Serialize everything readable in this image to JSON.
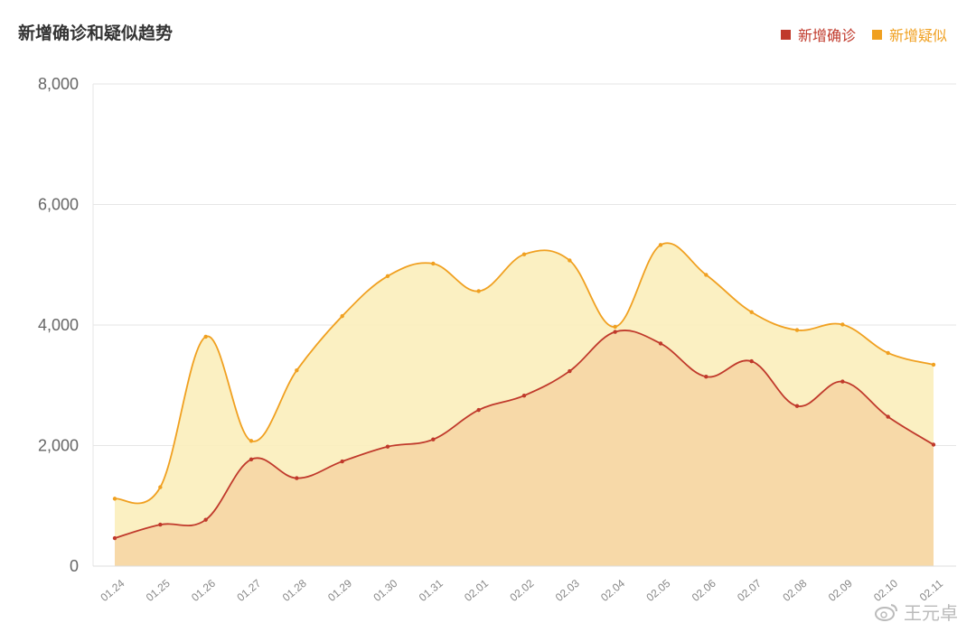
{
  "chart_data": {
    "type": "area",
    "title": "新增确诊和疑似趋势",
    "categories": [
      "01.24",
      "01.25",
      "01.26",
      "01.27",
      "01.28",
      "01.29",
      "01.30",
      "01.31",
      "02.01",
      "02.02",
      "02.03",
      "02.04",
      "02.05",
      "02.06",
      "02.07",
      "02.08",
      "02.09",
      "02.10",
      "02.11"
    ],
    "series": [
      {
        "name": "新增确诊",
        "color": "#c0392b",
        "fill": "#f7d7a6",
        "values": [
          464,
          688,
          769,
          1771,
          1459,
          1737,
          1982,
          2102,
          2590,
          2829,
          3235,
          3887,
          3694,
          3143,
          3399,
          2656,
          3062,
          2478,
          2015
        ]
      },
      {
        "name": "新增疑似",
        "color": "#f0a020",
        "fill": "#fbeebb",
        "values": [
          1118,
          1309,
          3806,
          2077,
          3248,
          4148,
          4812,
          5019,
          4562,
          5173,
          5072,
          3971,
          5328,
          4833,
          4214,
          3916,
          4008,
          3536,
          3342
        ]
      }
    ],
    "ylim": [
      0,
      8000
    ],
    "yticks": [
      "0",
      "2,000",
      "4,000",
      "6,000",
      "8,000"
    ],
    "grid": true,
    "legend_position": "top-right"
  },
  "watermark": {
    "text": "王元卓",
    "icon": "weibo-icon"
  }
}
